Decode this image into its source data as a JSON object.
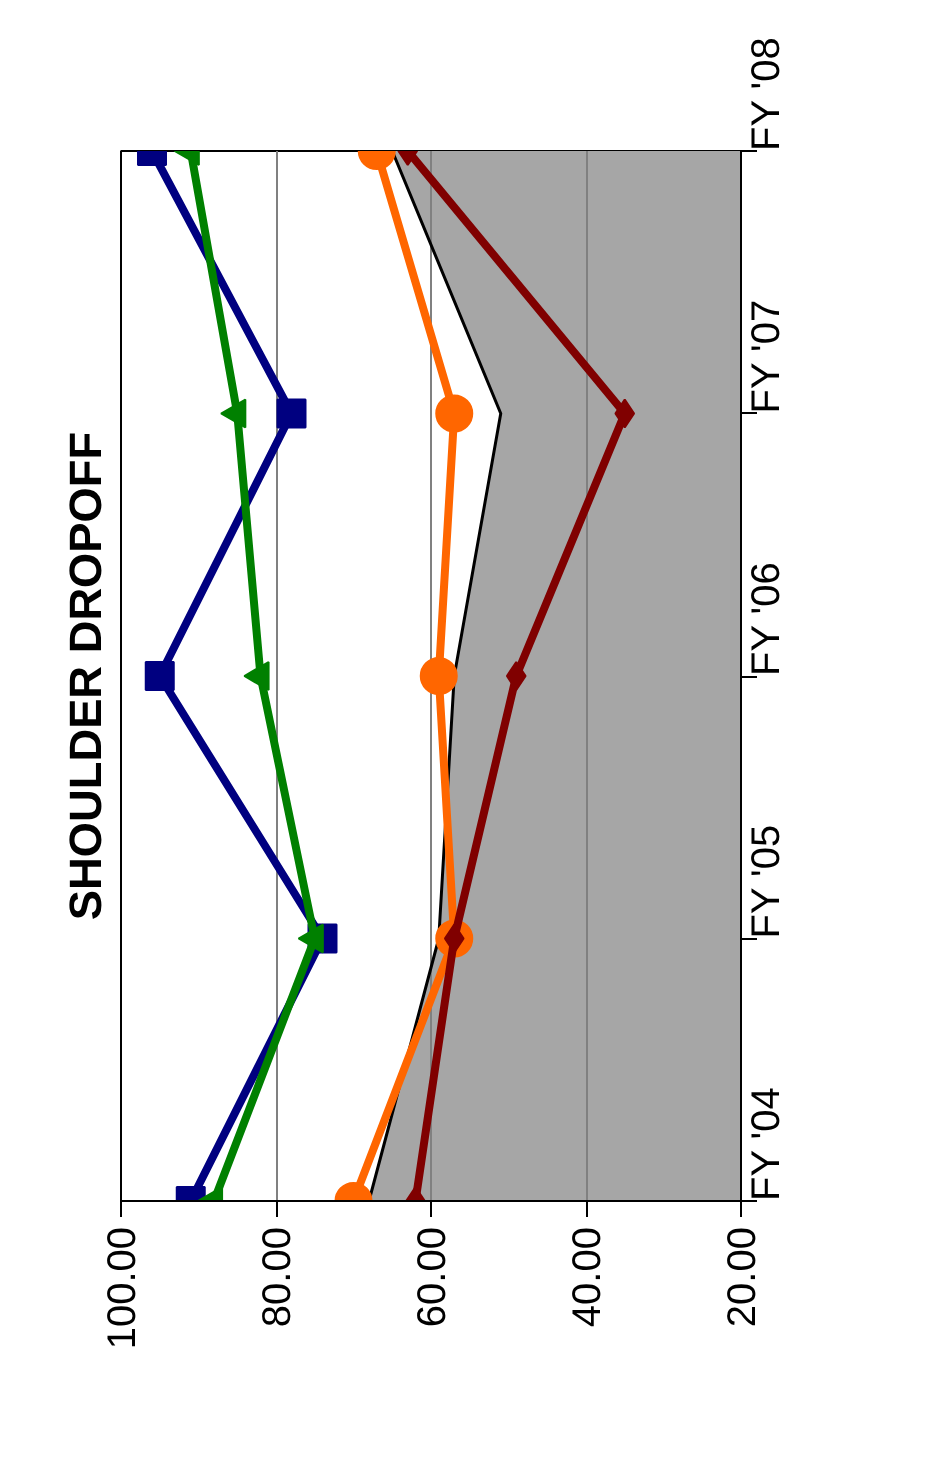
{
  "chart_data": {
    "type": "line",
    "title": "SHOULDER DROPOFF",
    "orientation": "horizontal",
    "categories": [
      "FY '08",
      "FY '07",
      "FY '06",
      "FY '05",
      "FY '04"
    ],
    "series": [
      {
        "type": "area",
        "color": "#a6a6a6",
        "values": [
          65,
          51,
          57,
          59,
          68
        ]
      },
      {
        "color": "#000080",
        "marker": "square",
        "values": [
          96,
          78,
          95,
          74,
          91
        ]
      },
      {
        "color": "#008000",
        "marker": "triangle",
        "values": [
          91,
          85,
          82,
          75,
          88
        ]
      },
      {
        "color": "#ff6600",
        "marker": "circle",
        "values": [
          67,
          57,
          59,
          57,
          70
        ]
      },
      {
        "color": "#800000",
        "marker": "diamond",
        "values": [
          63,
          35,
          49,
          57,
          62
        ]
      }
    ],
    "xlim": [
      100,
      20
    ],
    "xticks": [
      {
        "value": 100,
        "label": "100.00"
      },
      {
        "value": 80,
        "label": "80.00"
      },
      {
        "value": 60,
        "label": "60.00"
      },
      {
        "value": 40,
        "label": "40.00"
      },
      {
        "value": 20,
        "label": "20.00"
      }
    ],
    "grid": "x"
  }
}
